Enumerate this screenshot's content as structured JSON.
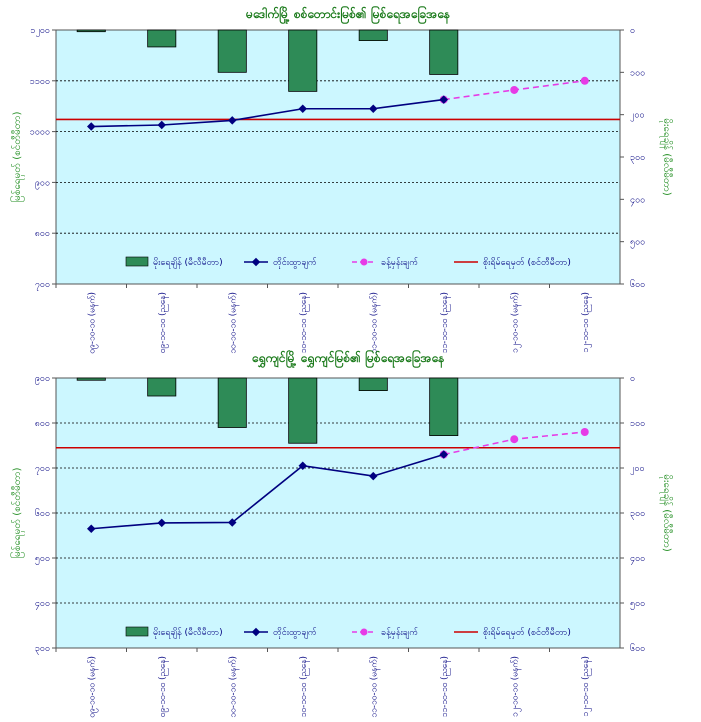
{
  "chart_data": [
    {
      "type": "bar+line",
      "title": "မဒေါက်မြို့ စစ်တောင်းမြစ်၏ မြစ်ရေအခြေအနေ",
      "ylabel_left": "မြစ်ရေမှတ် (စင်တီမီတာ)",
      "ylabel_right": "မိုးရေချိန် (မီလီမီတာ)",
      "left_axis": {
        "min": 700,
        "max": 1200,
        "step": 100,
        "tick_labels": [
          "၁၂၀၀",
          "၁၁၀၀",
          "၁၀၀၀",
          "၉၀၀",
          "၈၀၀",
          "၇၀၀"
        ]
      },
      "right_axis": {
        "min": 0,
        "max": 600,
        "step": 100,
        "tick_labels": [
          "၀",
          "၁၀၀",
          "၂၀၀",
          "၃၀၀",
          "၄၀၀",
          "၅၀၀",
          "၆၀၀"
        ]
      },
      "categories": [
        "၀၉-၁၀-၁၀ (မနက်)",
        "၀၉-၁၀-၁၀ (ညနေ)",
        "၁၀-၁၀-၁၀ (မနက်)",
        "၁၀-၁၀-၁၀ (ညနေ)",
        "၁၁-၁၀-၁၀ (မနက်)",
        "၁၁-၁၀-၁၀ (ညနေ)",
        "၁၂-၁၀-၁၀ (မနက်)",
        "၁၂-၁၀-၁၀ (ညနေ)"
      ],
      "rainfall": [
        4,
        40,
        100,
        145,
        25,
        105,
        null,
        null
      ],
      "observed": [
        1010,
        1013,
        1022,
        1045,
        1045,
        1063,
        null,
        null
      ],
      "forecast": [
        null,
        null,
        null,
        null,
        null,
        1063,
        1082,
        1100
      ],
      "danger_level": 1024,
      "legend": [
        "မိုးရေချိန် (မီလီမီတာ)",
        "တိုင်းထွာချက်",
        "ခန့်မှန်းချက်",
        "စိုးရိမ်ရေမှတ် (စင်တီမီတာ)"
      ]
    },
    {
      "type": "bar+line",
      "title": "ရွှေကျင်မြို့ ရွှေကျင်မြစ်၏ မြစ်ရေအခြေအနေ",
      "ylabel_left": "မြစ်ရေမှတ် (စင်တီမီတာ)",
      "ylabel_right": "မိုးရေချိန် (မီလီမီတာ)",
      "left_axis": {
        "min": 300,
        "max": 900,
        "step": 100,
        "tick_labels": [
          "၉၀၀",
          "၈၀၀",
          "၇၀၀",
          "၆၀၀",
          "၅၀၀",
          "၄၀၀",
          "၃၀၀"
        ]
      },
      "right_axis": {
        "min": 0,
        "max": 600,
        "step": 100,
        "tick_labels": [
          "၀",
          "၁၀၀",
          "၂၀၀",
          "၃၀၀",
          "၄၀၀",
          "၅၀၀",
          "၆၀၀"
        ]
      },
      "categories": [
        "၀၉-၁၀-၁၀ (မနက်)",
        "၀၉-၁၀-၁၀ (ညနေ)",
        "၁၀-၁၀-၁၀ (မနက်)",
        "၁၀-၁၀-၁၀ (ညနေ)",
        "၁၁-၁၀-၁၀ (မနက်)",
        "၁၁-၁၀-၁၀ (ညနေ)",
        "၁၂-၁၀-၁၀ (မနက်)",
        "၁၂-၁၀-၁၀ (ညနေ)"
      ],
      "rainfall": [
        5,
        40,
        110,
        145,
        28,
        128,
        null,
        null
      ],
      "observed": [
        565,
        578,
        579,
        705,
        682,
        730,
        null,
        null
      ],
      "forecast": [
        null,
        null,
        null,
        null,
        null,
        730,
        764,
        780
      ],
      "danger_level": 745,
      "legend": [
        "မိုးရေချိန် (မီလီမီတာ)",
        "တိုင်းထွာချက်",
        "ခန့်မှန်းချက်",
        "စိုးရိမ်ရေမှတ် (စင်တီမီတာ)"
      ]
    }
  ]
}
